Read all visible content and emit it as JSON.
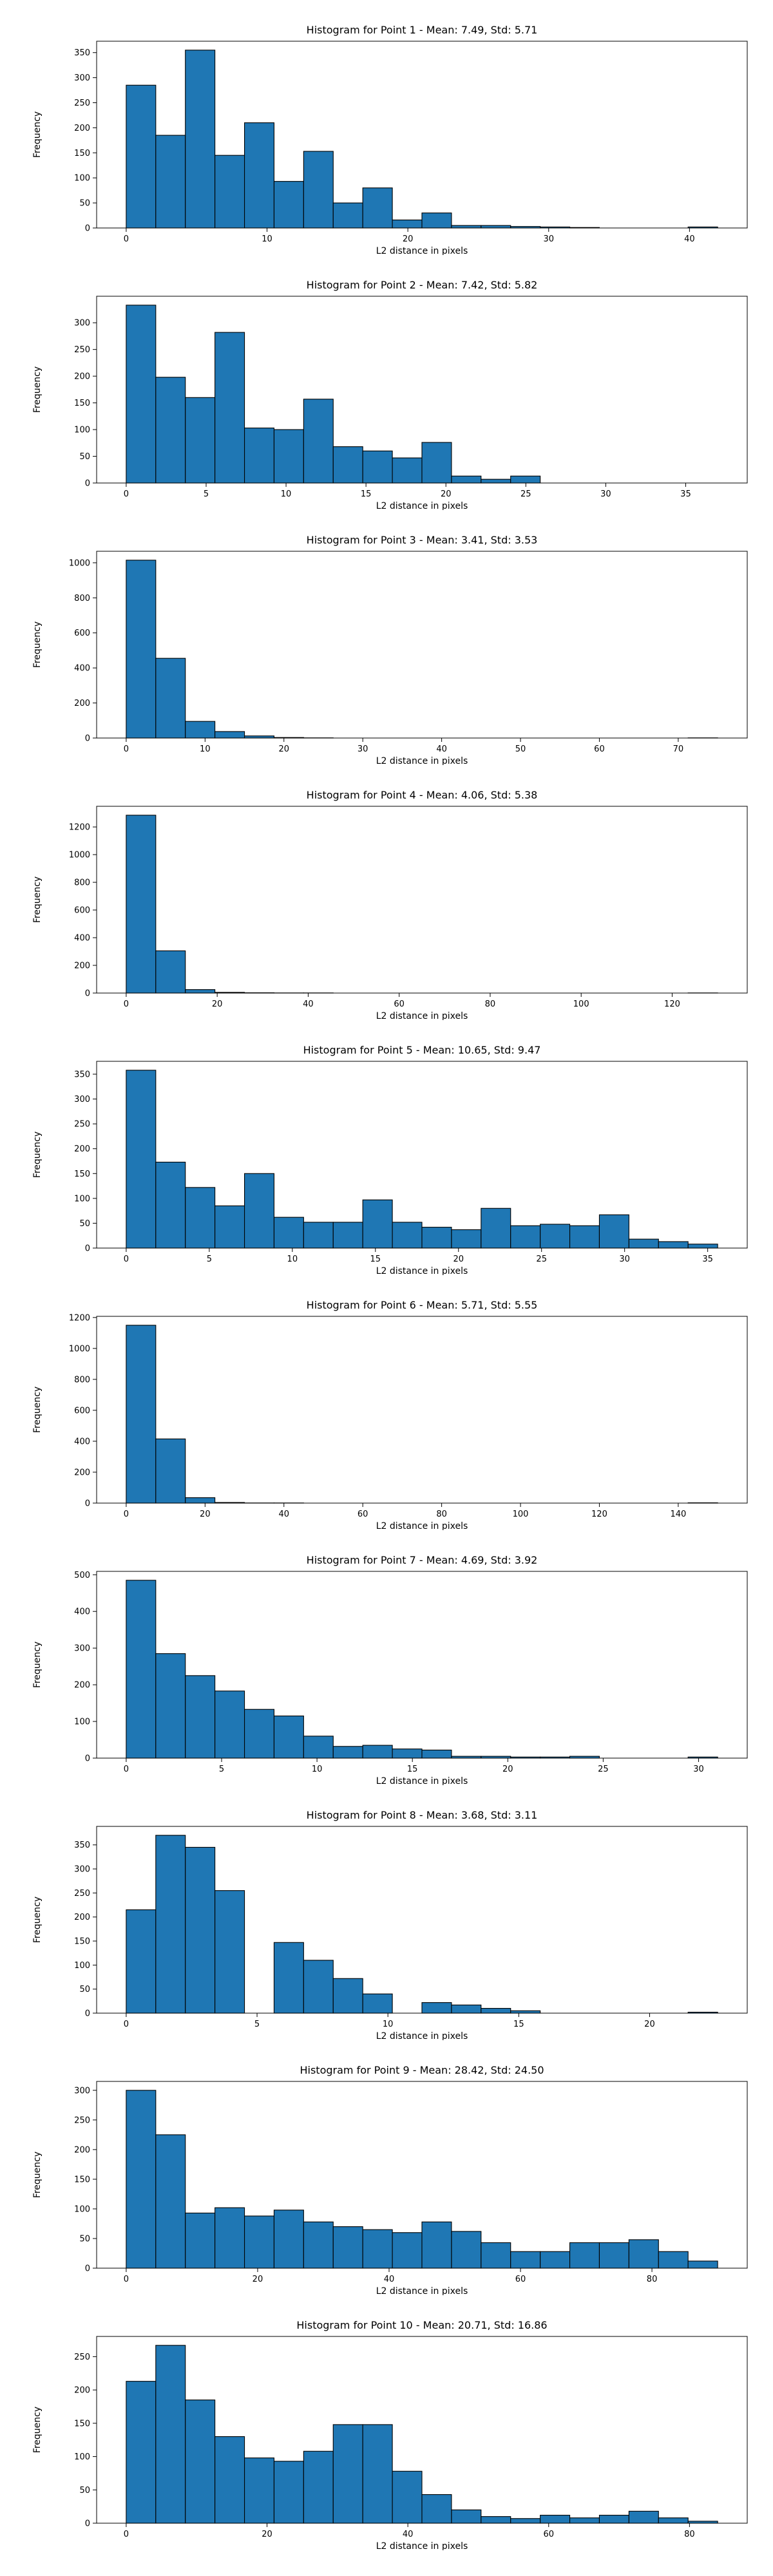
{
  "colors": {
    "bar_fill": "#1f77b4",
    "bar_edge": "#000000",
    "axis": "#000000",
    "background": "#ffffff"
  },
  "chart_data": [
    {
      "type": "bar",
      "title": "Histogram for Point 1 - Mean: 7.49, Std: 5.71",
      "xlabel": "L2 distance in pixels",
      "ylabel": "Frequency",
      "grid": false,
      "bin_edges": [
        0,
        2.1,
        4.2,
        6.3,
        8.4,
        10.5,
        12.6,
        14.7,
        16.8,
        18.9,
        21.0,
        23.1,
        25.2,
        27.3,
        29.4,
        31.5,
        33.6,
        35.7,
        37.8,
        39.9,
        42.0
      ],
      "values": [
        285,
        185,
        355,
        145,
        210,
        93,
        153,
        50,
        80,
        16,
        30,
        5,
        5,
        3,
        2,
        1,
        0,
        0,
        0,
        2
      ],
      "xlim": [
        -2.1,
        44.1
      ],
      "ylim": [
        0,
        372.75
      ],
      "xticks": [
        0,
        10,
        20,
        30,
        40
      ],
      "yticks": [
        0,
        50,
        100,
        150,
        200,
        250,
        300,
        350
      ]
    },
    {
      "type": "bar",
      "title": "Histogram for Point 2 - Mean: 7.42, Std: 5.82",
      "xlabel": "L2 distance in pixels",
      "ylabel": "Frequency",
      "grid": false,
      "bin_edges": [
        0,
        1.85,
        3.7,
        5.55,
        7.4,
        9.25,
        11.1,
        12.95,
        14.8,
        16.65,
        18.5,
        20.35,
        22.2,
        24.05,
        25.9,
        27.75,
        29.6,
        31.45,
        33.3,
        35.15,
        37.0
      ],
      "values": [
        333,
        198,
        160,
        282,
        103,
        100,
        157,
        68,
        60,
        47,
        76,
        13,
        7,
        13,
        0,
        0,
        0,
        0,
        0,
        0
      ],
      "xlim": [
        -1.85,
        38.85
      ],
      "ylim": [
        0,
        349.65
      ],
      "xticks": [
        0,
        5,
        10,
        15,
        20,
        25,
        30,
        35
      ],
      "yticks": [
        0,
        50,
        100,
        150,
        200,
        250,
        300
      ]
    },
    {
      "type": "bar",
      "title": "Histogram for Point 3 - Mean: 3.41, Std: 3.53",
      "xlabel": "L2 distance in pixels",
      "ylabel": "Frequency",
      "grid": false,
      "bin_edges": [
        0,
        3.75,
        7.5,
        11.25,
        15.0,
        18.75,
        22.5,
        26.25,
        30.0,
        33.75,
        37.5,
        41.25,
        45.0,
        48.75,
        52.5,
        56.25,
        60.0,
        63.75,
        67.5,
        71.25,
        75.0
      ],
      "values": [
        1015,
        455,
        95,
        37,
        12,
        3,
        1,
        0,
        0,
        0,
        0,
        0,
        0,
        0,
        0,
        0,
        0,
        0,
        0,
        1
      ],
      "xlim": [
        -3.75,
        78.75
      ],
      "ylim": [
        0,
        1065.75
      ],
      "xticks": [
        0,
        10,
        20,
        30,
        40,
        50,
        60,
        70
      ],
      "yticks": [
        0,
        200,
        400,
        600,
        800,
        1000
      ]
    },
    {
      "type": "bar",
      "title": "Histogram for Point 4 - Mean: 4.06, Std: 5.38",
      "xlabel": "L2 distance in pixels",
      "ylabel": "Frequency",
      "grid": false,
      "bin_edges": [
        0,
        6.5,
        13.0,
        19.5,
        26.0,
        32.5,
        39.0,
        45.5,
        52.0,
        58.5,
        65.0,
        71.5,
        78.0,
        84.5,
        91.0,
        97.5,
        104.0,
        110.5,
        117.0,
        123.5,
        130.0
      ],
      "values": [
        1285,
        305,
        25,
        5,
        2,
        1,
        1,
        0,
        0,
        0,
        0,
        0,
        0,
        0,
        0,
        0,
        0,
        0,
        0,
        1
      ],
      "xlim": [
        -6.5,
        136.5
      ],
      "ylim": [
        0,
        1349.25
      ],
      "xticks": [
        0,
        20,
        40,
        60,
        80,
        100,
        120
      ],
      "yticks": [
        0,
        200,
        400,
        600,
        800,
        1000,
        1200
      ]
    },
    {
      "type": "bar",
      "title": "Histogram for Point 5 - Mean: 10.65, Std: 9.47",
      "xlabel": "L2 distance in pixels",
      "ylabel": "Frequency",
      "grid": false,
      "bin_edges": [
        0,
        1.78,
        3.56,
        5.34,
        7.12,
        8.9,
        10.68,
        12.46,
        14.24,
        16.02,
        17.8,
        19.58,
        21.36,
        23.14,
        24.92,
        26.7,
        28.48,
        30.26,
        32.04,
        33.82,
        35.6
      ],
      "values": [
        358,
        173,
        122,
        85,
        150,
        62,
        52,
        52,
        97,
        52,
        42,
        37,
        80,
        45,
        48,
        45,
        67,
        18,
        13,
        8
      ],
      "xlim": [
        -1.78,
        37.38
      ],
      "ylim": [
        0,
        375.9
      ],
      "xticks": [
        0,
        5,
        10,
        15,
        20,
        25,
        30,
        35
      ],
      "yticks": [
        0,
        50,
        100,
        150,
        200,
        250,
        300,
        350
      ]
    },
    {
      "type": "bar",
      "title": "Histogram for Point 6 - Mean: 5.71, Std: 5.55",
      "xlabel": "L2 distance in pixels",
      "ylabel": "Frequency",
      "grid": false,
      "bin_edges": [
        0,
        7.5,
        15.0,
        22.5,
        30.0,
        37.5,
        45.0,
        52.5,
        60.0,
        67.5,
        75.0,
        82.5,
        90.0,
        97.5,
        105.0,
        112.5,
        120.0,
        127.5,
        135.0,
        142.5,
        150.0
      ],
      "values": [
        1150,
        415,
        35,
        4,
        1,
        1,
        0,
        0,
        0,
        0,
        0,
        0,
        0,
        0,
        0,
        0,
        0,
        0,
        0,
        2
      ],
      "xlim": [
        -7.5,
        157.5
      ],
      "ylim": [
        0,
        1207.5
      ],
      "xticks": [
        0,
        20,
        40,
        60,
        80,
        100,
        120,
        140
      ],
      "yticks": [
        0,
        200,
        400,
        600,
        800,
        1000,
        1200
      ]
    },
    {
      "type": "bar",
      "title": "Histogram for Point 7 - Mean: 4.69, Std: 3.92",
      "xlabel": "L2 distance in pixels",
      "ylabel": "Frequency",
      "grid": false,
      "bin_edges": [
        0,
        1.55,
        3.1,
        4.65,
        6.2,
        7.75,
        9.3,
        10.85,
        12.4,
        13.95,
        15.5,
        17.05,
        18.6,
        20.15,
        21.7,
        23.25,
        24.8,
        26.35,
        27.9,
        29.45,
        31.0
      ],
      "values": [
        485,
        285,
        225,
        183,
        133,
        115,
        60,
        32,
        35,
        25,
        22,
        5,
        5,
        3,
        3,
        5,
        0,
        0,
        0,
        3
      ],
      "xlim": [
        -1.55,
        32.55
      ],
      "ylim": [
        0,
        509.25
      ],
      "xticks": [
        0,
        5,
        10,
        15,
        20,
        25,
        30
      ],
      "yticks": [
        0,
        100,
        200,
        300,
        400,
        500
      ]
    },
    {
      "type": "bar",
      "title": "Histogram for Point 8 - Mean: 3.68, Std: 3.11",
      "xlabel": "L2 distance in pixels",
      "ylabel": "Frequency",
      "grid": false,
      "bin_edges": [
        0,
        1.13,
        2.26,
        3.39,
        4.52,
        5.65,
        6.78,
        7.91,
        9.04,
        10.17,
        11.3,
        12.43,
        13.56,
        14.69,
        15.82,
        16.95,
        18.08,
        19.21,
        20.34,
        21.47,
        22.6
      ],
      "values": [
        215,
        370,
        345,
        255,
        0,
        147,
        110,
        72,
        40,
        0,
        22,
        17,
        10,
        5,
        0,
        0,
        0,
        0,
        0,
        2
      ],
      "xlim": [
        -1.13,
        23.73
      ],
      "ylim": [
        0,
        388.5
      ],
      "xticks": [
        0,
        5,
        10,
        15,
        20
      ],
      "yticks": [
        0,
        50,
        100,
        150,
        200,
        250,
        300,
        350
      ]
    },
    {
      "type": "bar",
      "title": "Histogram for Point 9 - Mean: 28.42, Std: 24.50",
      "xlabel": "L2 distance in pixels",
      "ylabel": "Frequency",
      "grid": false,
      "bin_edges": [
        0,
        4.5,
        9.0,
        13.5,
        18.0,
        22.5,
        27.0,
        31.5,
        36.0,
        40.5,
        45.0,
        49.5,
        54.0,
        58.5,
        63.0,
        67.5,
        72.0,
        76.5,
        81.0,
        85.5,
        90.0
      ],
      "values": [
        300,
        225,
        93,
        102,
        88,
        98,
        78,
        70,
        65,
        60,
        78,
        62,
        43,
        28,
        28,
        43,
        43,
        48,
        28,
        12
      ],
      "xlim": [
        -4.5,
        94.5
      ],
      "ylim": [
        0,
        315
      ],
      "xticks": [
        0,
        20,
        40,
        60,
        80
      ],
      "yticks": [
        0,
        50,
        100,
        150,
        200,
        250,
        300
      ]
    },
    {
      "type": "bar",
      "title": "Histogram for Point 10 - Mean: 20.71, Std: 16.86",
      "xlabel": "L2 distance in pixels",
      "ylabel": "Frequency",
      "grid": false,
      "bin_edges": [
        0,
        4.2,
        8.4,
        12.6,
        16.8,
        21.0,
        25.2,
        29.4,
        33.6,
        37.8,
        42.0,
        46.2,
        50.4,
        54.6,
        58.8,
        63.0,
        67.2,
        71.4,
        75.6,
        79.8,
        84.0
      ],
      "values": [
        213,
        267,
        185,
        130,
        98,
        93,
        108,
        148,
        148,
        78,
        43,
        20,
        10,
        7,
        12,
        8,
        12,
        18,
        8,
        3
      ],
      "xlim": [
        -4.2,
        88.2
      ],
      "ylim": [
        0,
        280.35
      ],
      "xticks": [
        0,
        20,
        40,
        60,
        80
      ],
      "yticks": [
        0,
        50,
        100,
        150,
        200,
        250
      ]
    }
  ]
}
